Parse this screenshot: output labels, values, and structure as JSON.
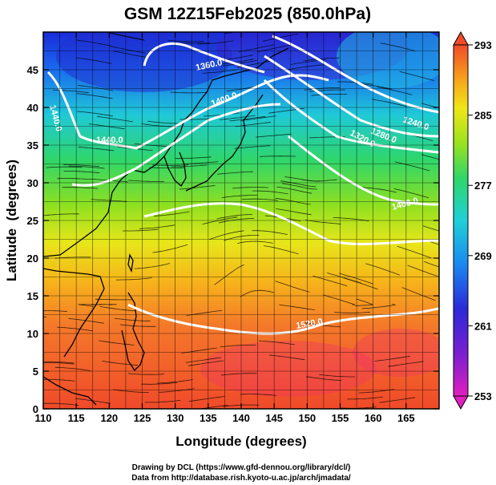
{
  "title": "GSM 12Z15Feb2025 (850.0hPa)",
  "xlabel": "Longitude (degrees)",
  "ylabel": "Latitude  (degrees)",
  "footer": [
    "Drawing by DCL (https://www.gfd-dennou.org/library/dcl/)",
    "Data from http://database.rish.kyoto-u.ac.jp/arch/jmadata/"
  ],
  "map": {
    "xlim": [
      110,
      170
    ],
    "ylim": [
      0,
      50
    ],
    "x_ticks": [
      110,
      115,
      120,
      125,
      130,
      135,
      140,
      145,
      150,
      155,
      160,
      165
    ],
    "y_ticks": [
      0,
      5,
      10,
      15,
      20,
      25,
      30,
      35,
      40,
      45
    ],
    "grid": true,
    "grid_step_deg": 2.5,
    "coastline_color": "#000000",
    "streamline_color": "#000000"
  },
  "colorbar": {
    "min": 253,
    "max": 293,
    "tick_labels": [
      "293",
      "285",
      "277",
      "269",
      "261",
      "253"
    ],
    "tick_values": [
      293,
      285,
      277,
      269,
      261,
      253
    ],
    "colors": [
      "#e01fbf",
      "#2a1fd0",
      "#1a7cf0",
      "#1fd0d8",
      "#2fd66a",
      "#9be21f",
      "#f0e61a",
      "#f6a51a",
      "#f04a2a"
    ]
  },
  "contours": {
    "color": "#ffffff",
    "labels": [
      "1360.0",
      "1400.0",
      "1440.0",
      "1240.0",
      "1280.0",
      "1320.0",
      "1400.0",
      "1440.0",
      "1520.0"
    ]
  }
}
